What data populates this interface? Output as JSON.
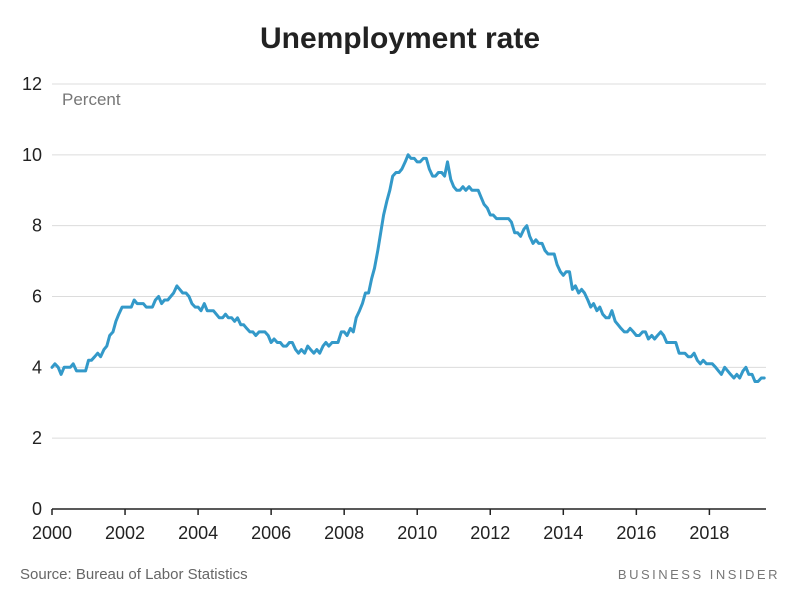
{
  "chart_data": {
    "type": "line",
    "title": "Unemployment rate",
    "ylabel": "Percent",
    "xlabel": "",
    "ylim": [
      0,
      12
    ],
    "xlim": [
      2000,
      2019.55
    ],
    "y_ticks": [
      0,
      2,
      4,
      6,
      8,
      10,
      12
    ],
    "x_ticks": [
      2000,
      2002,
      2004,
      2006,
      2008,
      2010,
      2012,
      2014,
      2016,
      2018
    ],
    "grid": true,
    "legend": "none",
    "series": [
      {
        "name": "Unemployment rate",
        "color": "#3399c9",
        "x": [
          2000.0,
          2000.08,
          2000.17,
          2000.25,
          2000.33,
          2000.42,
          2000.5,
          2000.58,
          2000.67,
          2000.75,
          2000.83,
          2000.92,
          2001.0,
          2001.08,
          2001.17,
          2001.25,
          2001.33,
          2001.42,
          2001.5,
          2001.58,
          2001.67,
          2001.75,
          2001.83,
          2001.92,
          2002.0,
          2002.08,
          2002.17,
          2002.25,
          2002.33,
          2002.42,
          2002.5,
          2002.58,
          2002.67,
          2002.75,
          2002.83,
          2002.92,
          2003.0,
          2003.08,
          2003.17,
          2003.25,
          2003.33,
          2003.42,
          2003.5,
          2003.58,
          2003.67,
          2003.75,
          2003.83,
          2003.92,
          2004.0,
          2004.08,
          2004.17,
          2004.25,
          2004.33,
          2004.42,
          2004.5,
          2004.58,
          2004.67,
          2004.75,
          2004.83,
          2004.92,
          2005.0,
          2005.08,
          2005.17,
          2005.25,
          2005.33,
          2005.42,
          2005.5,
          2005.58,
          2005.67,
          2005.75,
          2005.83,
          2005.92,
          2006.0,
          2006.08,
          2006.17,
          2006.25,
          2006.33,
          2006.42,
          2006.5,
          2006.58,
          2006.67,
          2006.75,
          2006.83,
          2006.92,
          2007.0,
          2007.08,
          2007.17,
          2007.25,
          2007.33,
          2007.42,
          2007.5,
          2007.58,
          2007.67,
          2007.75,
          2007.83,
          2007.92,
          2008.0,
          2008.08,
          2008.17,
          2008.25,
          2008.33,
          2008.42,
          2008.5,
          2008.58,
          2008.67,
          2008.75,
          2008.83,
          2008.92,
          2009.0,
          2009.08,
          2009.17,
          2009.25,
          2009.33,
          2009.42,
          2009.5,
          2009.58,
          2009.67,
          2009.75,
          2009.83,
          2009.92,
          2010.0,
          2010.08,
          2010.17,
          2010.25,
          2010.33,
          2010.42,
          2010.5,
          2010.58,
          2010.67,
          2010.75,
          2010.83,
          2010.92,
          2011.0,
          2011.08,
          2011.17,
          2011.25,
          2011.33,
          2011.42,
          2011.5,
          2011.58,
          2011.67,
          2011.75,
          2011.83,
          2011.92,
          2012.0,
          2012.08,
          2012.17,
          2012.25,
          2012.33,
          2012.42,
          2012.5,
          2012.58,
          2012.67,
          2012.75,
          2012.83,
          2012.92,
          2013.0,
          2013.08,
          2013.17,
          2013.25,
          2013.33,
          2013.42,
          2013.5,
          2013.58,
          2013.67,
          2013.75,
          2013.83,
          2013.92,
          2014.0,
          2014.08,
          2014.17,
          2014.25,
          2014.33,
          2014.42,
          2014.5,
          2014.58,
          2014.67,
          2014.75,
          2014.83,
          2014.92,
          2015.0,
          2015.08,
          2015.17,
          2015.25,
          2015.33,
          2015.42,
          2015.5,
          2015.58,
          2015.67,
          2015.75,
          2015.83,
          2015.92,
          2016.0,
          2016.08,
          2016.17,
          2016.25,
          2016.33,
          2016.42,
          2016.5,
          2016.58,
          2016.67,
          2016.75,
          2016.83,
          2016.92,
          2017.0,
          2017.08,
          2017.17,
          2017.25,
          2017.33,
          2017.42,
          2017.5,
          2017.58,
          2017.67,
          2017.75,
          2017.83,
          2017.92,
          2018.0,
          2018.08,
          2018.17,
          2018.25,
          2018.33,
          2018.42,
          2018.5,
          2018.58,
          2018.67,
          2018.75,
          2018.83,
          2018.92,
          2019.0,
          2019.08,
          2019.17,
          2019.25,
          2019.33,
          2019.42,
          2019.5
        ],
        "values": [
          4.0,
          4.1,
          4.0,
          3.8,
          4.0,
          4.0,
          4.0,
          4.1,
          3.9,
          3.9,
          3.9,
          3.9,
          4.2,
          4.2,
          4.3,
          4.4,
          4.3,
          4.5,
          4.6,
          4.9,
          5.0,
          5.3,
          5.5,
          5.7,
          5.7,
          5.7,
          5.7,
          5.9,
          5.8,
          5.8,
          5.8,
          5.7,
          5.7,
          5.7,
          5.9,
          6.0,
          5.8,
          5.9,
          5.9,
          6.0,
          6.1,
          6.3,
          6.2,
          6.1,
          6.1,
          6.0,
          5.8,
          5.7,
          5.7,
          5.6,
          5.8,
          5.6,
          5.6,
          5.6,
          5.5,
          5.4,
          5.4,
          5.5,
          5.4,
          5.4,
          5.3,
          5.4,
          5.2,
          5.2,
          5.1,
          5.0,
          5.0,
          4.9,
          5.0,
          5.0,
          5.0,
          4.9,
          4.7,
          4.8,
          4.7,
          4.7,
          4.6,
          4.6,
          4.7,
          4.7,
          4.5,
          4.4,
          4.5,
          4.4,
          4.6,
          4.5,
          4.4,
          4.5,
          4.4,
          4.6,
          4.7,
          4.6,
          4.7,
          4.7,
          4.7,
          5.0,
          5.0,
          4.9,
          5.1,
          5.0,
          5.4,
          5.6,
          5.8,
          6.1,
          6.1,
          6.5,
          6.8,
          7.3,
          7.8,
          8.3,
          8.7,
          9.0,
          9.4,
          9.5,
          9.5,
          9.6,
          9.8,
          10.0,
          9.9,
          9.9,
          9.8,
          9.8,
          9.9,
          9.9,
          9.6,
          9.4,
          9.4,
          9.5,
          9.5,
          9.4,
          9.8,
          9.3,
          9.1,
          9.0,
          9.0,
          9.1,
          9.0,
          9.1,
          9.0,
          9.0,
          9.0,
          8.8,
          8.6,
          8.5,
          8.3,
          8.3,
          8.2,
          8.2,
          8.2,
          8.2,
          8.2,
          8.1,
          7.8,
          7.8,
          7.7,
          7.9,
          8.0,
          7.7,
          7.5,
          7.6,
          7.5,
          7.5,
          7.3,
          7.2,
          7.2,
          7.2,
          6.9,
          6.7,
          6.6,
          6.7,
          6.7,
          6.2,
          6.3,
          6.1,
          6.2,
          6.1,
          5.9,
          5.7,
          5.8,
          5.6,
          5.7,
          5.5,
          5.4,
          5.4,
          5.6,
          5.3,
          5.2,
          5.1,
          5.0,
          5.0,
          5.1,
          5.0,
          4.9,
          4.9,
          5.0,
          5.0,
          4.8,
          4.9,
          4.8,
          4.9,
          5.0,
          4.9,
          4.7,
          4.7,
          4.7,
          4.7,
          4.4,
          4.4,
          4.4,
          4.3,
          4.3,
          4.4,
          4.2,
          4.1,
          4.2,
          4.1,
          4.1,
          4.1,
          4.0,
          3.9,
          3.8,
          4.0,
          3.9,
          3.8,
          3.7,
          3.8,
          3.7,
          3.9,
          4.0,
          3.8,
          3.8,
          3.6,
          3.6,
          3.7,
          3.7
        ]
      }
    ]
  },
  "footer": {
    "source": "Source: Bureau of Labor Statistics",
    "brand": "BUSINESS INSIDER"
  }
}
